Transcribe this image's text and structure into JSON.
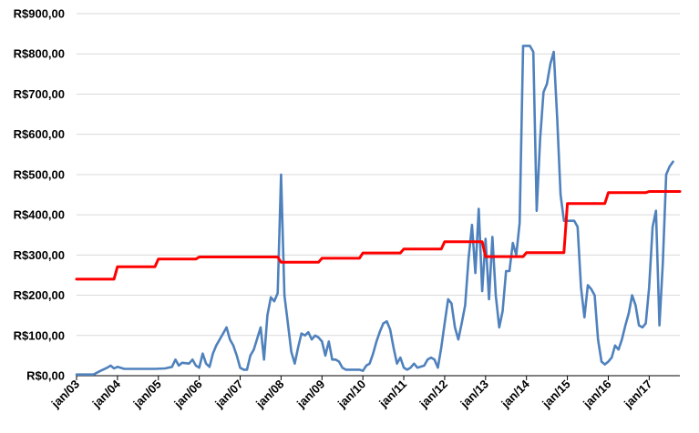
{
  "chart_data": {
    "type": "line",
    "title": "",
    "xlabel": "",
    "ylabel": "",
    "ylim": [
      0,
      900
    ],
    "yticks": [
      0,
      100,
      200,
      300,
      400,
      500,
      600,
      700,
      800,
      900
    ],
    "ytick_labels": [
      "R$0,00",
      "R$100,00",
      "R$200,00",
      "R$300,00",
      "R$400,00",
      "R$500,00",
      "R$600,00",
      "R$700,00",
      "R$800,00",
      "R$900,00"
    ],
    "xlim": [
      "2003-01",
      "2017-10"
    ],
    "xtick_labels": [
      "jan/03",
      "jan/04",
      "jan/05",
      "jan/06",
      "jan/07",
      "jan/08",
      "jan/09",
      "jan/10",
      "jan/11",
      "jan/12",
      "jan/13",
      "jan/14",
      "jan/15",
      "jan/16",
      "jan/17"
    ],
    "xtick_dates": [
      "2003-01",
      "2004-01",
      "2005-01",
      "2006-01",
      "2007-01",
      "2008-01",
      "2009-01",
      "2010-01",
      "2011-01",
      "2012-01",
      "2013-01",
      "2014-01",
      "2015-01",
      "2016-01",
      "2017-01"
    ],
    "grid": "horizontal",
    "legend": "none",
    "series": [
      {
        "color": "#4f81bd",
        "points": [
          [
            "2003-01",
            3
          ],
          [
            "2003-06",
            3
          ],
          [
            "2003-08",
            12
          ],
          [
            "2003-10",
            20
          ],
          [
            "2003-11",
            25
          ],
          [
            "2003-12",
            18
          ],
          [
            "2004-01",
            22
          ],
          [
            "2004-03",
            17
          ],
          [
            "2004-06",
            17
          ],
          [
            "2004-09",
            17
          ],
          [
            "2004-12",
            17
          ],
          [
            "2005-03",
            18
          ],
          [
            "2005-05",
            22
          ],
          [
            "2005-06",
            40
          ],
          [
            "2005-07",
            25
          ],
          [
            "2005-08",
            32
          ],
          [
            "2005-10",
            30
          ],
          [
            "2005-11",
            40
          ],
          [
            "2005-12",
            25
          ],
          [
            "2006-01",
            20
          ],
          [
            "2006-02",
            55
          ],
          [
            "2006-03",
            30
          ],
          [
            "2006-04",
            22
          ],
          [
            "2006-05",
            55
          ],
          [
            "2006-06",
            75
          ],
          [
            "2006-08",
            105
          ],
          [
            "2006-09",
            120
          ],
          [
            "2006-10",
            90
          ],
          [
            "2006-11",
            75
          ],
          [
            "2006-12",
            50
          ],
          [
            "2007-01",
            20
          ],
          [
            "2007-02",
            15
          ],
          [
            "2007-03",
            15
          ],
          [
            "2007-04",
            50
          ],
          [
            "2007-05",
            65
          ],
          [
            "2007-07",
            120
          ],
          [
            "2007-08",
            40
          ],
          [
            "2007-09",
            150
          ],
          [
            "2007-10",
            195
          ],
          [
            "2007-11",
            185
          ],
          [
            "2007-12",
            205
          ],
          [
            "2008-01",
            500
          ],
          [
            "2008-02",
            200
          ],
          [
            "2008-03",
            130
          ],
          [
            "2008-04",
            60
          ],
          [
            "2008-05",
            30
          ],
          [
            "2008-06",
            70
          ],
          [
            "2008-07",
            105
          ],
          [
            "2008-08",
            100
          ],
          [
            "2008-09",
            108
          ],
          [
            "2008-10",
            90
          ],
          [
            "2008-11",
            100
          ],
          [
            "2008-12",
            95
          ],
          [
            "2009-01",
            85
          ],
          [
            "2009-02",
            50
          ],
          [
            "2009-03",
            85
          ],
          [
            "2009-04",
            40
          ],
          [
            "2009-05",
            40
          ],
          [
            "2009-06",
            35
          ],
          [
            "2009-07",
            20
          ],
          [
            "2009-08",
            15
          ],
          [
            "2009-12",
            15
          ],
          [
            "2010-01",
            12
          ],
          [
            "2010-02",
            25
          ],
          [
            "2010-03",
            30
          ],
          [
            "2010-04",
            55
          ],
          [
            "2010-05",
            85
          ],
          [
            "2010-06",
            110
          ],
          [
            "2010-07",
            130
          ],
          [
            "2010-08",
            135
          ],
          [
            "2010-09",
            115
          ],
          [
            "2010-10",
            70
          ],
          [
            "2010-11",
            30
          ],
          [
            "2010-12",
            45
          ],
          [
            "2011-01",
            20
          ],
          [
            "2011-02",
            15
          ],
          [
            "2011-03",
            20
          ],
          [
            "2011-04",
            30
          ],
          [
            "2011-05",
            20
          ],
          [
            "2011-07",
            25
          ],
          [
            "2011-08",
            40
          ],
          [
            "2011-09",
            45
          ],
          [
            "2011-10",
            40
          ],
          [
            "2011-11",
            20
          ],
          [
            "2011-12",
            70
          ],
          [
            "2012-01",
            130
          ],
          [
            "2012-02",
            190
          ],
          [
            "2012-03",
            180
          ],
          [
            "2012-04",
            120
          ],
          [
            "2012-05",
            90
          ],
          [
            "2012-06",
            130
          ],
          [
            "2012-07",
            175
          ],
          [
            "2012-08",
            290
          ],
          [
            "2012-09",
            375
          ],
          [
            "2012-10",
            255
          ],
          [
            "2012-11",
            415
          ],
          [
            "2012-12",
            210
          ],
          [
            "2013-01",
            340
          ],
          [
            "2013-02",
            190
          ],
          [
            "2013-03",
            345
          ],
          [
            "2013-04",
            200
          ],
          [
            "2013-05",
            120
          ],
          [
            "2013-06",
            160
          ],
          [
            "2013-07",
            260
          ],
          [
            "2013-08",
            260
          ],
          [
            "2013-09",
            330
          ],
          [
            "2013-10",
            300
          ],
          [
            "2013-11",
            380
          ],
          [
            "2013-12",
            820
          ],
          [
            "2014-01",
            820
          ],
          [
            "2014-02",
            820
          ],
          [
            "2014-03",
            805
          ],
          [
            "2014-04",
            410
          ],
          [
            "2014-05",
            590
          ],
          [
            "2014-06",
            705
          ],
          [
            "2014-07",
            725
          ],
          [
            "2014-08",
            775
          ],
          [
            "2014-09",
            805
          ],
          [
            "2014-10",
            640
          ],
          [
            "2014-11",
            450
          ],
          [
            "2014-12",
            385
          ],
          [
            "2015-01",
            385
          ],
          [
            "2015-02",
            385
          ],
          [
            "2015-03",
            385
          ],
          [
            "2015-04",
            370
          ],
          [
            "2015-05",
            220
          ],
          [
            "2015-06",
            145
          ],
          [
            "2015-07",
            225
          ],
          [
            "2015-08",
            215
          ],
          [
            "2015-09",
            200
          ],
          [
            "2015-10",
            90
          ],
          [
            "2015-11",
            35
          ],
          [
            "2015-12",
            28
          ],
          [
            "2016-01",
            35
          ],
          [
            "2016-02",
            45
          ],
          [
            "2016-03",
            75
          ],
          [
            "2016-04",
            65
          ],
          [
            "2016-05",
            90
          ],
          [
            "2016-06",
            125
          ],
          [
            "2016-07",
            155
          ],
          [
            "2016-08",
            200
          ],
          [
            "2016-09",
            175
          ],
          [
            "2016-10",
            125
          ],
          [
            "2016-11",
            120
          ],
          [
            "2016-12",
            130
          ],
          [
            "2017-01",
            220
          ],
          [
            "2017-02",
            370
          ],
          [
            "2017-03",
            410
          ],
          [
            "2017-04",
            125
          ],
          [
            "2017-05",
            280
          ],
          [
            "2017-06",
            500
          ],
          [
            "2017-07",
            520
          ],
          [
            "2017-08",
            532
          ]
        ]
      },
      {
        "color": "#ff0000",
        "points": [
          [
            "2003-01",
            240
          ],
          [
            "2003-12",
            240
          ],
          [
            "2004-01",
            271
          ],
          [
            "2004-12",
            271
          ],
          [
            "2005-01",
            290
          ],
          [
            "2005-12",
            290
          ],
          [
            "2006-01",
            295
          ],
          [
            "2006-12",
            295
          ],
          [
            "2007-01",
            295
          ],
          [
            "2007-12",
            295
          ],
          [
            "2008-01",
            282
          ],
          [
            "2008-12",
            282
          ],
          [
            "2009-01",
            292
          ],
          [
            "2009-12",
            292
          ],
          [
            "2010-01",
            305
          ],
          [
            "2010-12",
            305
          ],
          [
            "2011-01",
            315
          ],
          [
            "2011-12",
            315
          ],
          [
            "2012-01",
            333
          ],
          [
            "2012-12",
            333
          ],
          [
            "2013-01",
            296
          ],
          [
            "2013-12",
            296
          ],
          [
            "2014-01",
            306
          ],
          [
            "2014-12",
            306
          ],
          [
            "2015-01",
            428
          ],
          [
            "2015-12",
            428
          ],
          [
            "2016-01",
            455
          ],
          [
            "2016-12",
            455
          ],
          [
            "2017-01",
            458
          ],
          [
            "2017-10",
            458
          ]
        ]
      }
    ]
  }
}
